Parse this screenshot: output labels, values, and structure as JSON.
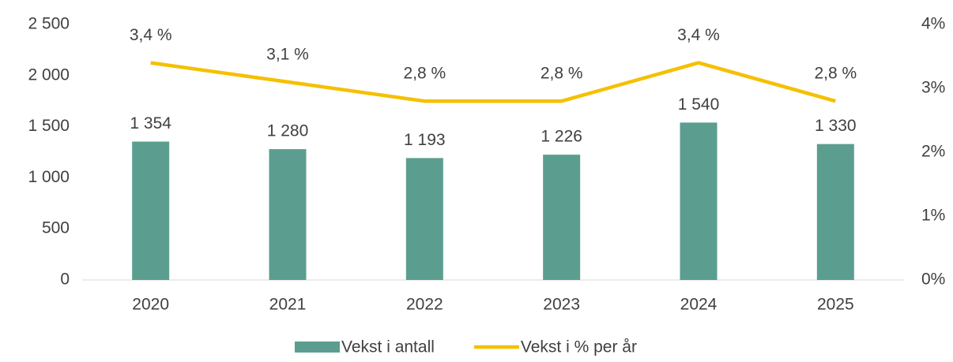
{
  "chart_data": {
    "type": "combo",
    "categories": [
      "2020",
      "2021",
      "2022",
      "2023",
      "2024",
      "2025"
    ],
    "series": [
      {
        "name": "Vekst i antall",
        "type": "bar",
        "color": "#5b9e8f",
        "axis": "y",
        "values": [
          1354,
          1280,
          1193,
          1226,
          1540,
          1330
        ],
        "value_labels": [
          "1 354",
          "1 280",
          "1 193",
          "1 226",
          "1 540",
          "1 330"
        ]
      },
      {
        "name": "Vekst i % per år",
        "type": "line",
        "color": "#f5c000",
        "axis": "y2",
        "values": [
          3.4,
          3.1,
          2.8,
          2.8,
          3.4,
          2.8
        ],
        "value_labels": [
          "3,4 %",
          "3,1 %",
          "2,8 %",
          "2,8 %",
          "3,4 %",
          "2,8 %"
        ]
      }
    ],
    "ylim": [
      0,
      2500
    ],
    "yticks": [
      0,
      500,
      {
        "value": 1000,
        "label": "1 000"
      },
      {
        "value": 1500,
        "label": "1 500"
      },
      {
        "value": 2000,
        "label": "2 000"
      },
      {
        "value": 2500,
        "label": "2 500"
      }
    ],
    "y2lim": [
      0,
      4
    ],
    "y2ticks": [
      {
        "value": 0,
        "label": "0%"
      },
      {
        "value": 1,
        "label": "1%"
      },
      {
        "value": 2,
        "label": "2%"
      },
      {
        "value": 3,
        "label": "3%"
      },
      {
        "value": 4,
        "label": "4%"
      }
    ],
    "legend": "bottom"
  }
}
